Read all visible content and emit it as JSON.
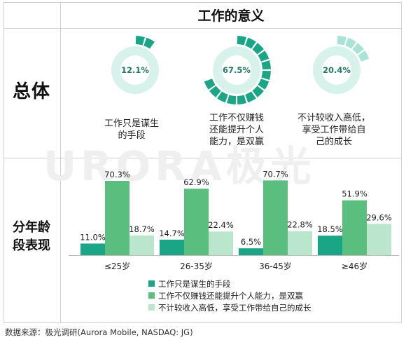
{
  "title": "工作的意义",
  "overall_label": "总体",
  "age_label_line1": "分年龄",
  "age_label_line2": "段表现",
  "watermark": "URORA极光",
  "footer": "数据来源：极光调研(Aurora Mobile, NASDAQ: JG)",
  "colors": {
    "dark": "#1aa686",
    "mid": "#5abf7e",
    "light": "#b9e6cc",
    "track": "#d6f2ea"
  },
  "donuts": [
    {
      "value_label": "12.1%",
      "value": 12.1,
      "caption_line1": "工作只是谋生",
      "caption_line2": "的手段",
      "caption_line3": "",
      "color": "#1aa686"
    },
    {
      "value_label": "67.5%",
      "value": 67.5,
      "caption_line1": "工作不仅赚钱",
      "caption_line2": "还能提升个人",
      "caption_line3": "能力，是双赢",
      "color": "#1aa686"
    },
    {
      "value_label": "20.4%",
      "value": 20.4,
      "caption_line1": "不计较收入高低，",
      "caption_line2": "享受工作带给自",
      "caption_line3": "己的成长",
      "color": "#a9e3d5"
    }
  ],
  "chart_data": {
    "type": "bar",
    "categories": [
      "≤25岁",
      "26-35岁",
      "36-45岁",
      "≥46岁"
    ],
    "series": [
      {
        "name": "工作只是谋生的手段",
        "values": [
          11.0,
          14.7,
          6.5,
          18.5
        ],
        "labels": [
          "11.0%",
          "14.7%",
          "6.5%",
          "18.5%"
        ],
        "color": "#1aa686"
      },
      {
        "name": "工作不仅赚钱还能提升个人能力，是双赢",
        "values": [
          70.3,
          62.9,
          70.7,
          51.9
        ],
        "labels": [
          "70.3%",
          "62.9%",
          "70.7%",
          "51.9%"
        ],
        "color": "#5abf7e"
      },
      {
        "name": "不计较收入高低，享受工作带给自己的成长",
        "values": [
          18.7,
          22.4,
          22.8,
          29.6
        ],
        "labels": [
          "18.7%",
          "22.4%",
          "22.8%",
          "29.6%"
        ],
        "color": "#b9e6cc"
      }
    ],
    "ylim": [
      0,
      80
    ],
    "legend_position": "bottom"
  }
}
